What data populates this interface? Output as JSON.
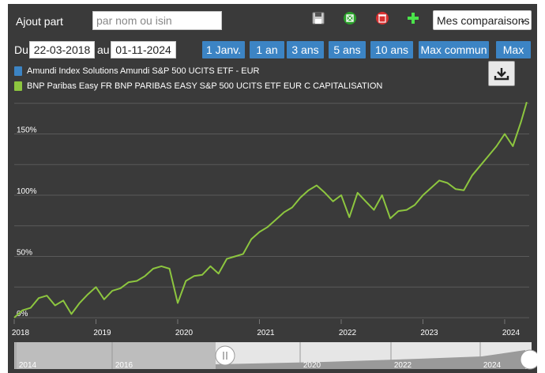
{
  "toolbar": {
    "add_label": "Ajout part",
    "search_placeholder": "par nom ou isin",
    "icons": [
      "save-icon",
      "excel-icon",
      "delete-icon",
      "add-icon"
    ],
    "comparisons_label": "Mes comparaisons"
  },
  "date_range": {
    "from_label": "Du",
    "from": "22-03-2018",
    "to_label": "au",
    "to": "01-11-2024"
  },
  "range_buttons": [
    "1 Janv.",
    "1 an",
    "3 ans",
    "5 ans",
    "10 ans",
    "Max commun",
    "Max"
  ],
  "colors": {
    "background": "#3a3a3a",
    "series_amundi": "#3c84c4",
    "series_bnp": "#8dc63f",
    "button": "#3c84c4"
  },
  "chart_data": {
    "type": "line",
    "title": "",
    "xlabel": "",
    "ylabel": "",
    "ylim": [
      0,
      180
    ],
    "yticks": [
      0,
      50,
      100,
      150
    ],
    "ytick_labels": [
      "0%",
      "50%",
      "100%",
      "150%"
    ],
    "xlim": [
      2018.0,
      2024.3
    ],
    "xticks": [
      2018,
      2019,
      2020,
      2021,
      2022,
      2023,
      2024
    ],
    "xtick_labels": [
      "2018",
      "2019",
      "2020",
      "2021",
      "2022",
      "2023",
      "2024"
    ],
    "legend_position": "top-left",
    "series": [
      {
        "name": "Amundi Index Solutions Amundi S&P 500 UCITS ETF - EUR",
        "color": "#3c84c4",
        "x": [],
        "y": []
      },
      {
        "name": "BNP Paribas Easy FR BNP PARIBAS EASY S&P 500 UCITS ETF EUR C CAPITALISATION",
        "color": "#8dc63f",
        "x": [
          2018.0,
          2018.1,
          2018.2,
          2018.3,
          2018.4,
          2018.5,
          2018.6,
          2018.7,
          2018.8,
          2018.9,
          2019.0,
          2019.1,
          2019.2,
          2019.3,
          2019.4,
          2019.5,
          2019.6,
          2019.7,
          2019.8,
          2019.9,
          2020.0,
          2020.1,
          2020.2,
          2020.3,
          2020.4,
          2020.5,
          2020.6,
          2020.7,
          2020.8,
          2020.9,
          2021.0,
          2021.1,
          2021.2,
          2021.3,
          2021.4,
          2021.5,
          2021.6,
          2021.7,
          2021.8,
          2021.9,
          2022.0,
          2022.1,
          2022.2,
          2022.3,
          2022.4,
          2022.5,
          2022.6,
          2022.7,
          2022.8,
          2022.9,
          2023.0,
          2023.1,
          2023.2,
          2023.3,
          2023.4,
          2023.5,
          2023.6,
          2023.7,
          2023.8,
          2023.9,
          2024.0,
          2024.1,
          2024.2,
          2024.27
        ],
        "y": [
          0,
          6,
          8,
          16,
          18,
          10,
          14,
          3,
          12,
          19,
          25,
          15,
          22,
          24,
          29,
          30,
          34,
          40,
          42,
          40,
          12,
          30,
          34,
          35,
          42,
          36,
          48,
          50,
          52,
          64,
          70,
          74,
          80,
          86,
          90,
          98,
          104,
          108,
          102,
          95,
          100,
          82,
          102,
          95,
          88,
          100,
          81,
          87,
          88,
          92,
          100,
          106,
          112,
          110,
          105,
          104,
          116,
          124,
          132,
          140,
          150,
          140,
          160,
          176
        ]
      }
    ]
  },
  "navigator": {
    "labels": [
      "2014",
      "2016",
      "2020",
      "2022",
      "2024"
    ]
  }
}
